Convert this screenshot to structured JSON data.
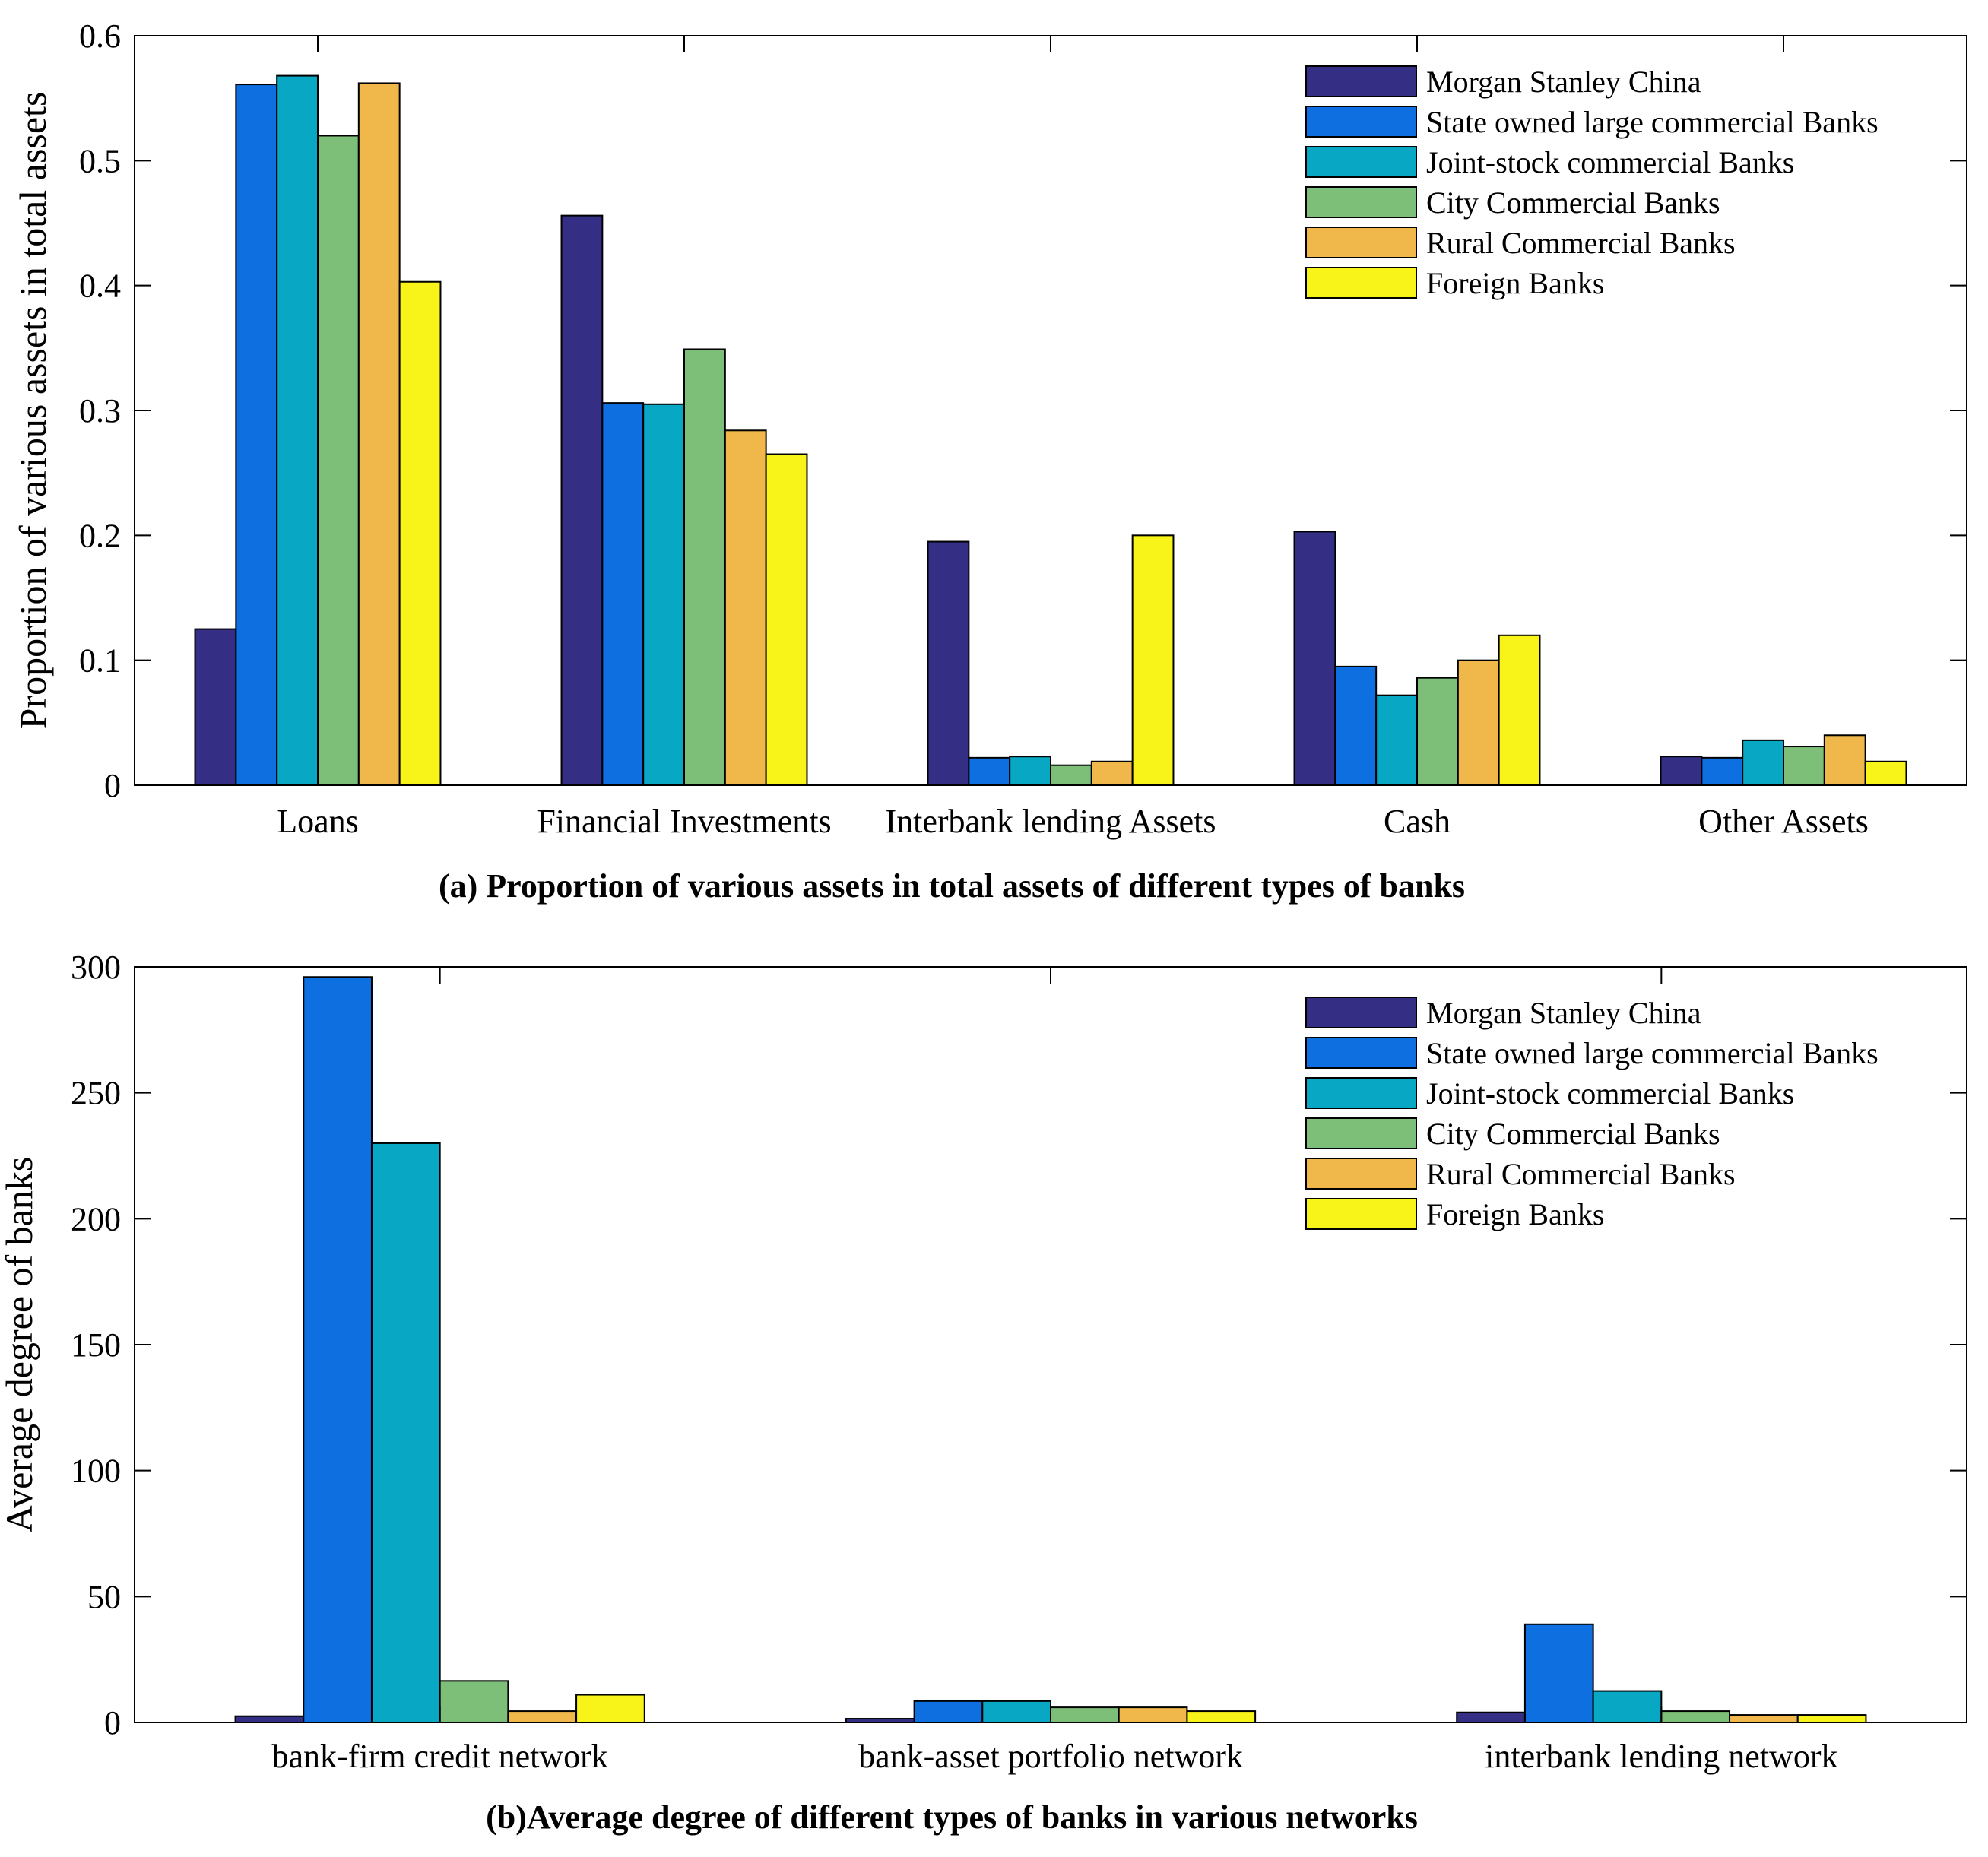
{
  "legend_entries": [
    "Morgan Stanley China",
    "State owned large commercial Banks",
    "Joint-stock commercial Banks",
    "City Commercial Banks",
    "Rural Commercial Banks",
    "Foreign Banks"
  ],
  "series_colors": [
    "#342f85",
    "#0d6fe0",
    "#08a7c4",
    "#7dbe78",
    "#f0b84a",
    "#f8f41a"
  ],
  "chart_data": [
    {
      "type": "bar",
      "caption": "(a) Proportion of various assets in total assets of different types of banks",
      "ylabel": "Proportion of various assets in total assets",
      "xlabel": "",
      "ylim": [
        0,
        0.6
      ],
      "yticks": [
        "0",
        "0.1",
        "0.2",
        "0.3",
        "0.4",
        "0.5",
        "0.6"
      ],
      "yticks_values": [
        0,
        0.1,
        0.2,
        0.3,
        0.4,
        0.5,
        0.6
      ],
      "categories": [
        "Loans",
        "Financial Investments",
        "Interbank lending Assets",
        "Cash",
        "Other Assets"
      ],
      "legend_position": "top-right",
      "series": [
        {
          "name": "Morgan Stanley China",
          "values": [
            0.125,
            0.456,
            0.195,
            0.203,
            0.023
          ]
        },
        {
          "name": "State owned large commercial Banks",
          "values": [
            0.561,
            0.306,
            0.022,
            0.095,
            0.022
          ]
        },
        {
          "name": "Joint-stock commercial Banks",
          "values": [
            0.568,
            0.305,
            0.023,
            0.072,
            0.036
          ]
        },
        {
          "name": "City Commercial Banks",
          "values": [
            0.52,
            0.349,
            0.016,
            0.086,
            0.031
          ]
        },
        {
          "name": "Rural Commercial Banks",
          "values": [
            0.562,
            0.284,
            0.019,
            0.1,
            0.04
          ]
        },
        {
          "name": "Foreign Banks",
          "values": [
            0.403,
            0.265,
            0.2,
            0.12,
            0.019
          ]
        }
      ]
    },
    {
      "type": "bar",
      "caption": "(b)Average degree of different types of banks in various networks",
      "ylabel": "Average degree of banks",
      "xlabel": "",
      "ylim": [
        0,
        300
      ],
      "yticks": [
        "0",
        "50",
        "100",
        "150",
        "200",
        "250",
        "300"
      ],
      "yticks_values": [
        0,
        50,
        100,
        150,
        200,
        250,
        300
      ],
      "categories": [
        "bank-firm credit network",
        "bank-asset portfolio network",
        "interbank lending network"
      ],
      "legend_position": "top-right",
      "series": [
        {
          "name": "Morgan Stanley China",
          "values": [
            2.5,
            1.5,
            4
          ]
        },
        {
          "name": "State owned large commercial Banks",
          "values": [
            296,
            8.5,
            39
          ]
        },
        {
          "name": "Joint-stock commercial Banks",
          "values": [
            230,
            8.5,
            12.5
          ]
        },
        {
          "name": "City Commercial Banks",
          "values": [
            16.5,
            6,
            4.5
          ]
        },
        {
          "name": "Rural Commercial Banks",
          "values": [
            4.5,
            6,
            3
          ]
        },
        {
          "name": "Foreign Banks",
          "values": [
            11,
            4.5,
            3
          ]
        }
      ]
    }
  ]
}
